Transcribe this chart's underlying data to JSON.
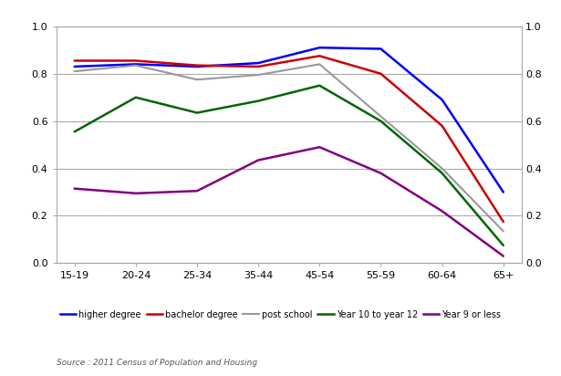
{
  "categories": [
    "15-19",
    "20-24",
    "25-34",
    "35-44",
    "45-54",
    "55-59",
    "60-64",
    "65+"
  ],
  "series": {
    "higher degree": {
      "values": [
        0.83,
        0.84,
        0.83,
        0.845,
        0.91,
        0.905,
        0.69,
        0.3
      ],
      "color": "#0000FF",
      "linewidth": 1.8
    },
    "bachelor degree": {
      "values": [
        0.855,
        0.855,
        0.835,
        0.83,
        0.875,
        0.8,
        0.58,
        0.175
      ],
      "color": "#CC0000",
      "linewidth": 1.8
    },
    "post school": {
      "values": [
        0.81,
        0.835,
        0.775,
        0.795,
        0.84,
        0.62,
        0.4,
        0.135
      ],
      "color": "#999999",
      "linewidth": 1.5
    },
    "Year 10 to year 12": {
      "values": [
        0.555,
        0.7,
        0.635,
        0.685,
        0.75,
        0.6,
        0.38,
        0.075
      ],
      "color": "#006600",
      "linewidth": 1.8
    },
    "Year 9 or less": {
      "values": [
        0.315,
        0.295,
        0.305,
        0.435,
        0.49,
        0.38,
        0.22,
        0.03
      ],
      "color": "#800080",
      "linewidth": 1.8
    }
  },
  "ylim": [
    0.0,
    1.0
  ],
  "yticks": [
    0.0,
    0.2,
    0.4,
    0.6,
    0.8,
    1.0
  ],
  "source_text": "Source : 2011 Census of Population and Housing",
  "background_color": "#ffffff",
  "grid_color": "#aaaaaa",
  "spine_color": "#aaaaaa"
}
